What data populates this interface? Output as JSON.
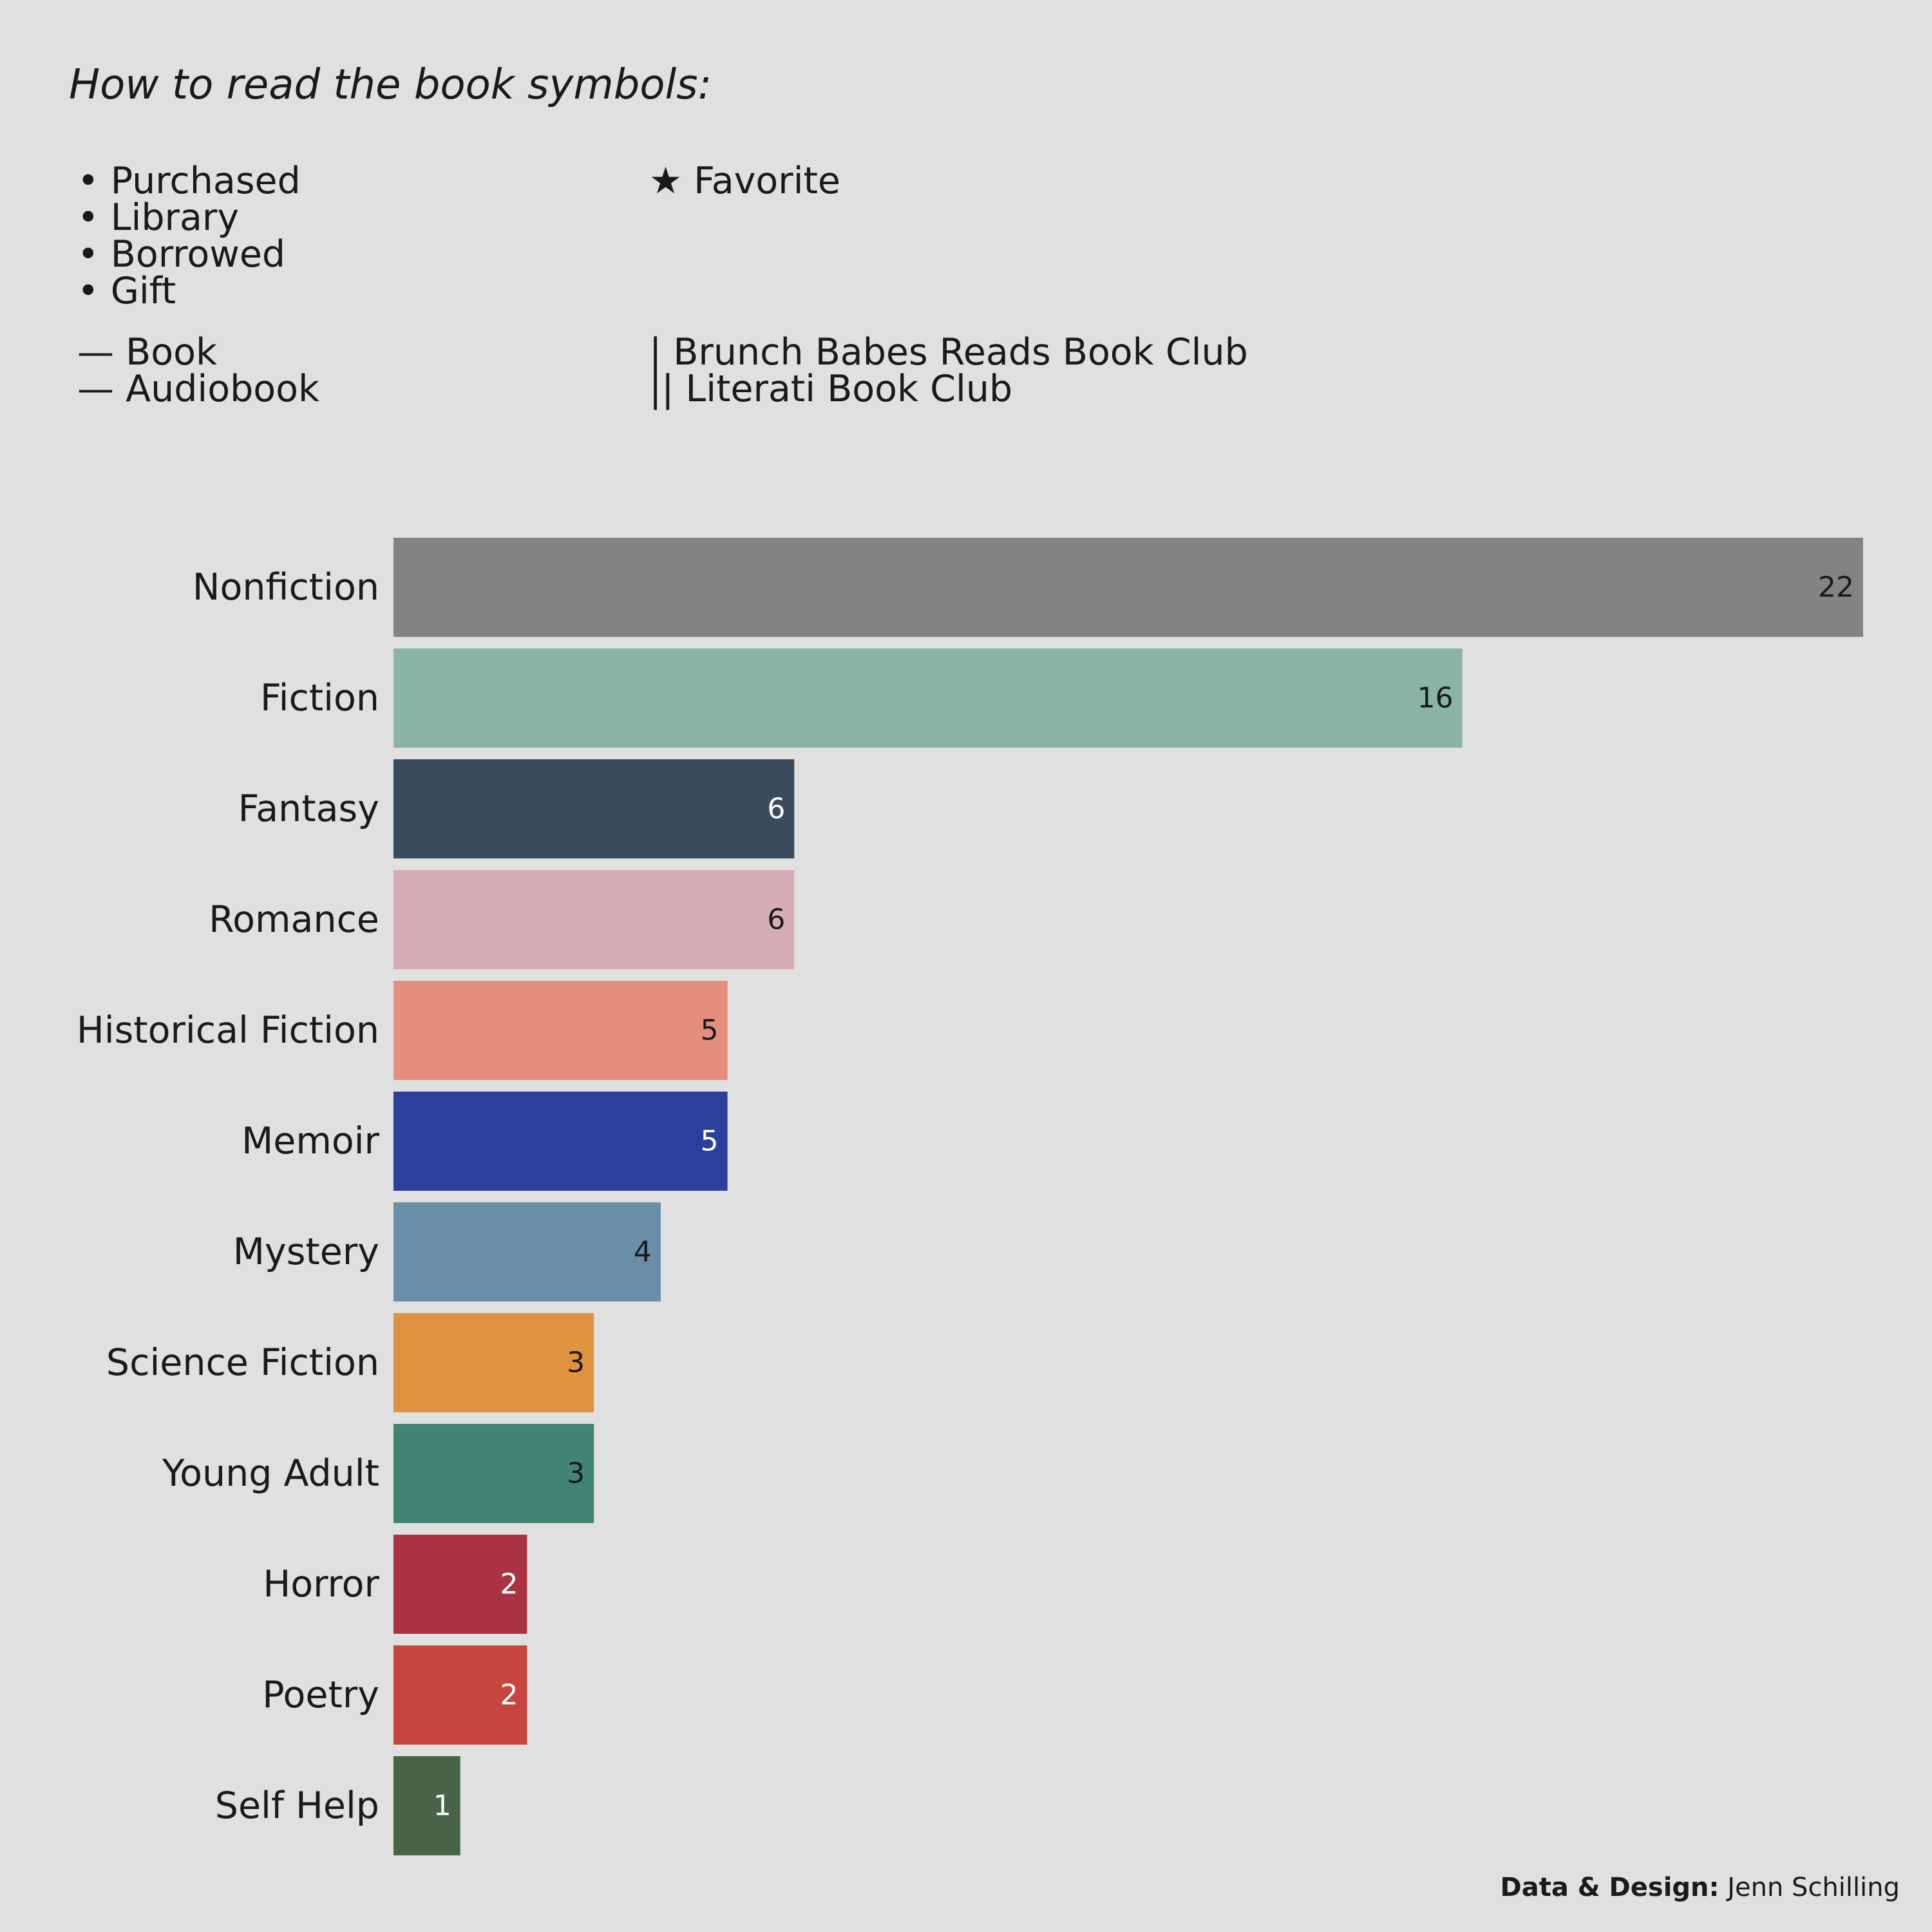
{
  "legend": {
    "title": "How to read the book symbols:",
    "acquisition": [
      "• Purchased",
      "• Library",
      "• Borrowed",
      "• Gift"
    ],
    "favorite": "★ Favorite",
    "format": [
      "— Book",
      "— Audiobook"
    ],
    "book_clubs": [
      "| Brunch Babes Reads Book Club",
      "|| Literati Book Club"
    ]
  },
  "chart_data": {
    "type": "bar",
    "orientation": "horizontal",
    "categories": [
      "Nonfiction",
      "Fiction",
      "Fantasy",
      "Romance",
      "Historical Fiction",
      "Memoir",
      "Mystery",
      "Science Fiction",
      "Young Adult",
      "Horror",
      "Poetry",
      "Self Help"
    ],
    "values": [
      22,
      16,
      6,
      6,
      5,
      5,
      4,
      3,
      3,
      2,
      2,
      1
    ],
    "colors": [
      "#838384",
      "#8bb4a8",
      "#3a4b5c",
      "#d5adb5",
      "#e48f7d",
      "#2c3f9d",
      "#698ea8",
      "#e0923e",
      "#428472",
      "#aa3242",
      "#c6453e",
      "#486346"
    ],
    "label_colors": [
      "#1a1a1a",
      "#1a1a1a",
      "#ffffff",
      "#1a1a1a",
      "#1a1a1a",
      "#ffffff",
      "#1a1a1a",
      "#1a1a1a",
      "#1a1a1a",
      "#ffffff",
      "#ffffff",
      "#ffffff"
    ],
    "title": "",
    "xlabel": "",
    "ylabel": "",
    "xlim": [
      0,
      22
    ],
    "grid": false,
    "axes_visible": false
  },
  "credit": {
    "label": "Data & Design:",
    "name": "Jenn Schilling"
  }
}
